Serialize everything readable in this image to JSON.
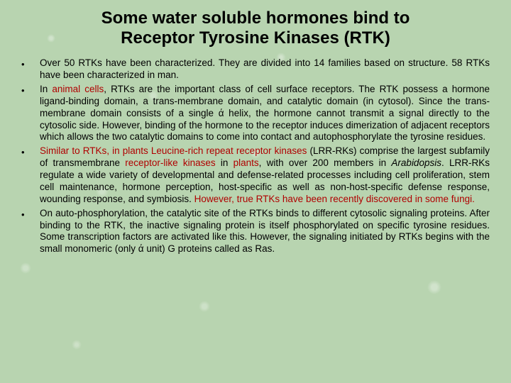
{
  "title_line1": "Some water soluble hormones bind to",
  "title_line2": "Receptor Tyrosine Kinases (RTK)",
  "colors": {
    "background": "#b8d4b0",
    "text": "#000000",
    "highlight": "#b00000"
  },
  "typography": {
    "title_fontsize": 24,
    "body_fontsize": 13.5,
    "font_family": "Arial",
    "title_weight": "bold"
  },
  "bullets": [
    {
      "parts": [
        {
          "t": "Over 50 RTKs have been characterized. They are divided into 14 families based on structure. 58 RTKs have been characterized in man.",
          "red": false
        }
      ]
    },
    {
      "parts": [
        {
          "t": "In ",
          "red": false
        },
        {
          "t": "animal cells",
          "red": true
        },
        {
          "t": ", RTKs are the important class of cell surface receptors. The RTK possess a hormone ligand-binding domain, a trans-membrane domain, and catalytic domain (in cytosol). Since the trans-membrane domain consists of a single ά helix, the hormone cannot transmit a signal directly to the cytosolic side. However, binding of the hormone to the receptor induces dimerization of adjacent receptors which allows the two catalytic domains to come into contact and autophosphorylate the tyrosine residues.",
          "red": false
        }
      ]
    },
    {
      "parts": [
        {
          "t": "Similar to RTKs, in plants Leucine-rich repeat receptor kinases",
          "red": true
        },
        {
          "t": " (LRR-RKs) comprise the largest subfamily of transmembrane ",
          "red": false
        },
        {
          "t": "receptor-like kinases",
          "red": true
        },
        {
          "t": " in ",
          "red": false
        },
        {
          "t": "plants",
          "red": true
        },
        {
          "t": ", with over 200 members in ",
          "red": false
        },
        {
          "t": "Arabidopsis",
          "red": false,
          "italic": true
        },
        {
          "t": ". LRR-RKs regulate a wide variety of developmental and defense-related processes including cell proliferation, stem cell maintenance, hormone perception, host-specific as well as non-host-specific defense response, wounding response, and symbiosis. ",
          "red": false
        },
        {
          "t": "However, true RTKs have been recently discovered in some fungi.",
          "red": true
        }
      ]
    },
    {
      "parts": [
        {
          "t": "On auto-phosphorylation, the catalytic site of the RTKs binds to different cytosolic signaling proteins. After binding to the RTK, the inactive signaling protein is itself phosphorylated on specific tyrosine residues. Some transcription factors are activated like this. However, the signaling initiated by RTKs begins with the small monomeric (only ά unit) G proteins called as Ras.",
          "red": false
        }
      ]
    }
  ]
}
